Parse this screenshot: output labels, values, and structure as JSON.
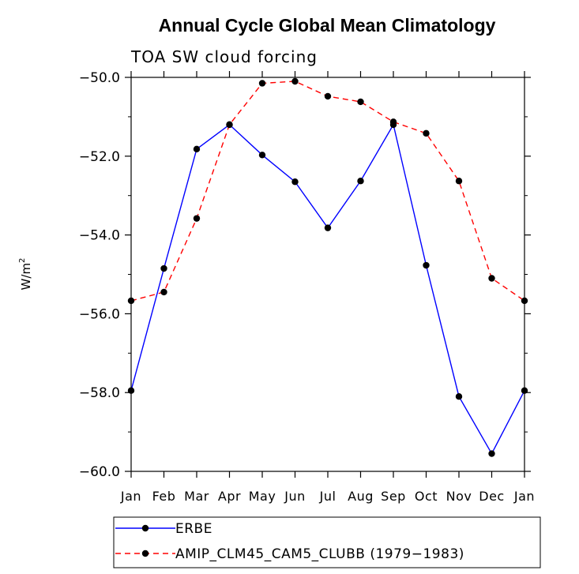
{
  "chart_data": {
    "type": "line",
    "title": "Annual Cycle Global Mean Climatology",
    "subtitle": "TOA SW cloud forcing",
    "ylabel": "W/m",
    "ylabel_superscript": "2",
    "ylim": [
      -60.0,
      -50.0
    ],
    "yticks": [
      "-50.0",
      "-52.0",
      "-54.0",
      "-56.0",
      "-58.0",
      "-60.0"
    ],
    "ytick_values": [
      -50,
      -52,
      -54,
      -56,
      -58,
      -60
    ],
    "categories": [
      "Jan",
      "Feb",
      "Mar",
      "Apr",
      "May",
      "Jun",
      "Jul",
      "Aug",
      "Sep",
      "Oct",
      "Nov",
      "Dec",
      "Jan"
    ],
    "series": [
      {
        "name": "ERBE",
        "color": "#0000ff",
        "dash": "solid",
        "values": [
          -57.95,
          -54.85,
          -51.82,
          -51.2,
          -51.97,
          -52.65,
          -53.82,
          -52.63,
          -51.2,
          -54.77,
          -58.1,
          -59.55,
          -57.95
        ]
      },
      {
        "name": "AMIP_CLM45_CAM5_CLUBB (1979-1983)",
        "color": "#ff0000",
        "dash": "dashed",
        "values": [
          -55.67,
          -55.45,
          -53.58,
          -51.2,
          -50.15,
          -50.1,
          -50.48,
          -50.62,
          -51.13,
          -51.42,
          -52.63,
          -55.1,
          -55.67
        ]
      }
    ]
  }
}
